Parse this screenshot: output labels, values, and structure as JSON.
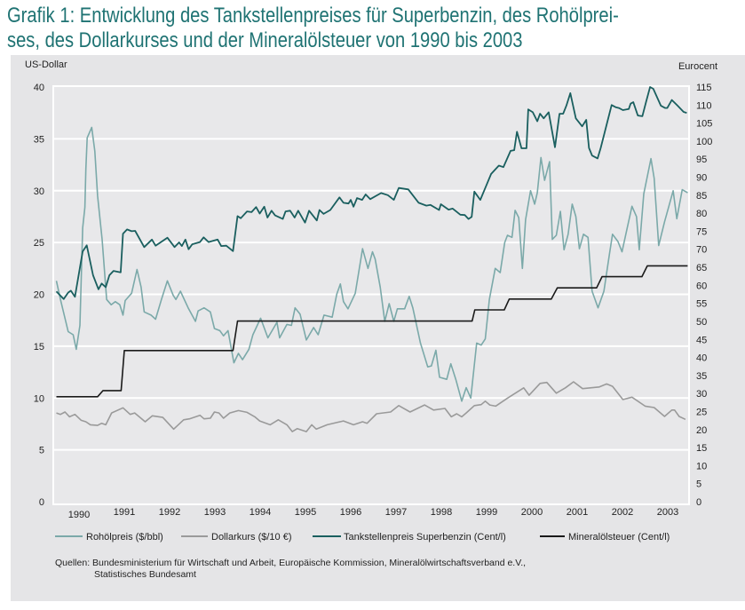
{
  "title": "Grafik 1: Entwicklung des Tankstellenpreises für Superbenzin, des Rohölpreises, des Dollarkurses und der Mineralölsteuer von 1990 bis 2003",
  "title_lines": [
    "Grafik 1: Entwicklung des Tankstellenpreises für Superbenzin, des Rohölprei-",
    "ses, des Dollarkurses und der Mineralölsteuer von 1990 bis 2003"
  ],
  "sources": [
    "Quellen: Bundesministerium für Wirtschaft und Arbeit, Europäische Kommission, Mineralölwirtschaftsverband e.V.,",
    "Statistisches Bundesamt"
  ],
  "chart_data": {
    "type": "line",
    "ylabel_left": "US-Dollar",
    "ylabel_right": "Eurocent",
    "ylim_left": [
      0,
      40
    ],
    "ylim_right": [
      0,
      115
    ],
    "yticks_left": [
      0,
      5,
      10,
      15,
      20,
      25,
      30,
      35,
      40
    ],
    "yticks_right": [
      0,
      5,
      10,
      15,
      20,
      25,
      30,
      35,
      40,
      45,
      50,
      55,
      60,
      65,
      70,
      75,
      80,
      85,
      90,
      95,
      100,
      105,
      110,
      115
    ],
    "xlim": [
      1990,
      2004
    ],
    "xtick_labels": [
      "1990",
      "1991",
      "1992",
      "1993",
      "1994",
      "1995",
      "1996",
      "1997",
      "1998",
      "1999",
      "2000",
      "2001",
      "2002",
      "2003"
    ],
    "grid": "horizontal",
    "legend_placement": "bottom",
    "series": [
      {
        "name": "Rohölpreis ($/bbl)",
        "axis": "left",
        "color": "#7ba9a9",
        "x": [
          1990.0,
          1990.09,
          1990.26,
          1990.37,
          1990.44,
          1990.52,
          1990.58,
          1990.63,
          1990.65,
          1990.68,
          1990.78,
          1990.85,
          1990.91,
          1991.01,
          1991.11,
          1991.21,
          1991.3,
          1991.4,
          1991.47,
          1991.52,
          1991.66,
          1991.78,
          1991.87,
          1991.94,
          1992.09,
          1992.19,
          1992.32,
          1992.45,
          1992.58,
          1992.64,
          1992.74,
          1992.91,
          1993.07,
          1993.13,
          1993.26,
          1993.4,
          1993.49,
          1993.61,
          1993.69,
          1993.79,
          1993.92,
          1994.02,
          1994.11,
          1994.25,
          1994.34,
          1994.51,
          1994.67,
          1994.87,
          1994.93,
          1995.09,
          1995.19,
          1995.27,
          1995.38,
          1995.52,
          1995.68,
          1995.78,
          1995.91,
          1996.09,
          1996.19,
          1996.27,
          1996.34,
          1996.44,
          1996.6,
          1996.76,
          1996.88,
          1996.98,
          1997.04,
          1997.15,
          1997.25,
          1997.35,
          1997.45,
          1997.53,
          1997.69,
          1997.79,
          1997.87,
          1998.04,
          1998.2,
          1998.28,
          1998.38,
          1998.46,
          1998.62,
          1998.71,
          1998.82,
          1998.95,
          1999.05,
          1999.15,
          1999.28,
          1999.38,
          1999.47,
          1999.56,
          1999.69,
          1999.8,
          1999.9,
          1999.96,
          2000.06,
          2000.13,
          2000.21,
          2000.29,
          2000.36,
          2000.47,
          2000.56,
          2000.62,
          2000.7,
          2000.78,
          2000.89,
          2000.95,
          2001.04,
          2001.13,
          2001.21,
          2001.3,
          2001.39,
          2001.47,
          2001.55,
          2001.64,
          2001.74,
          2001.83,
          2001.96,
          2002.09,
          2002.21,
          2002.28,
          2002.4,
          2002.49,
          2002.61,
          2002.71,
          2002.81,
          2002.87,
          2002.97,
          2003.13,
          2003.2,
          2003.3,
          2003.43,
          2003.62,
          2003.7,
          2003.82,
          2003.94
        ],
        "values": [
          21.3,
          19.5,
          16.4,
          16.1,
          14.7,
          17.0,
          26.4,
          28.4,
          32.1,
          35.1,
          36.1,
          33.8,
          29.5,
          25.3,
          19.5,
          19.0,
          19.3,
          19.0,
          18.0,
          19.4,
          20.1,
          22.4,
          20.7,
          18.3,
          18.0,
          17.6,
          19.5,
          21.3,
          19.9,
          19.5,
          20.3,
          18.7,
          17.4,
          18.4,
          18.7,
          18.3,
          16.7,
          16.5,
          16.0,
          16.5,
          13.4,
          14.3,
          13.7,
          14.7,
          16.1,
          17.7,
          15.8,
          17.3,
          15.8,
          17.1,
          17.0,
          18.7,
          18.1,
          15.6,
          16.8,
          16.1,
          18.0,
          17.8,
          20.0,
          21.0,
          19.3,
          18.6,
          20.1,
          24.4,
          22.5,
          24.1,
          23.4,
          20.7,
          17.4,
          19.1,
          17.4,
          18.6,
          18.6,
          19.8,
          18.7,
          15.3,
          13.0,
          13.1,
          14.6,
          12.0,
          11.8,
          13.3,
          11.8,
          9.7,
          11.0,
          10.0,
          15.3,
          15.1,
          15.7,
          19.5,
          22.5,
          22.1,
          25.0,
          25.7,
          25.5,
          28.1,
          27.4,
          22.5,
          27.2,
          30.0,
          28.7,
          29.8,
          33.2,
          31.0,
          32.8,
          25.3,
          25.7,
          28.0,
          24.3,
          25.8,
          28.7,
          27.5,
          24.4,
          25.8,
          25.5,
          20.3,
          18.7,
          20.3,
          23.8,
          25.8,
          25.1,
          24.1,
          26.5,
          28.5,
          27.5,
          24.3,
          29.7,
          33.1,
          31.2,
          24.7,
          27.0,
          30.0,
          27.3,
          30.1,
          29.8
        ]
      },
      {
        "name": "Dollarkurs ($/10 €)",
        "axis": "left",
        "color": "#9a9a9a",
        "x": [
          1990.0,
          1990.09,
          1990.19,
          1990.29,
          1990.41,
          1990.55,
          1990.65,
          1990.75,
          1990.91,
          1991.0,
          1991.09,
          1991.22,
          1991.47,
          1991.63,
          1991.73,
          1991.96,
          1992.12,
          1992.35,
          1992.59,
          1992.81,
          1992.94,
          1993.17,
          1993.26,
          1993.4,
          1993.49,
          1993.59,
          1993.69,
          1993.83,
          1994.02,
          1994.21,
          1994.38,
          1994.49,
          1994.72,
          1994.9,
          1995.09,
          1995.21,
          1995.32,
          1995.52,
          1995.64,
          1995.74,
          1995.98,
          1996.34,
          1996.56,
          1996.76,
          1996.86,
          1997.07,
          1997.38,
          1997.56,
          1997.81,
          1998.13,
          1998.33,
          1998.58,
          1998.72,
          1998.84,
          1998.95,
          1999.05,
          1999.23,
          1999.38,
          1999.47,
          1999.57,
          1999.7,
          1999.96,
          2000.32,
          2000.44,
          2000.68,
          2000.83,
          2001.04,
          2001.24,
          2001.42,
          2001.62,
          2001.99,
          2002.15,
          2002.28,
          2002.51,
          2002.71,
          2003.0,
          2003.2,
          2003.43,
          2003.59,
          2003.65,
          2003.75,
          2003.89
        ],
        "values": [
          8.56,
          8.42,
          8.65,
          8.19,
          8.42,
          7.85,
          7.71,
          7.42,
          7.36,
          7.56,
          7.42,
          8.56,
          9.05,
          8.42,
          8.56,
          7.71,
          8.28,
          8.13,
          7.0,
          7.9,
          7.99,
          8.33,
          7.99,
          8.05,
          8.65,
          8.56,
          8.05,
          8.56,
          8.79,
          8.62,
          8.19,
          7.79,
          7.42,
          7.9,
          7.42,
          6.76,
          7.05,
          6.76,
          7.42,
          7.0,
          7.42,
          7.79,
          7.42,
          7.71,
          7.56,
          8.48,
          8.65,
          9.27,
          8.65,
          9.33,
          8.84,
          8.99,
          8.19,
          8.48,
          8.19,
          8.56,
          9.27,
          9.36,
          9.7,
          9.33,
          9.22,
          9.99,
          10.98,
          10.27,
          11.41,
          11.5,
          10.47,
          10.98,
          11.56,
          10.9,
          11.07,
          11.36,
          11.13,
          9.85,
          10.08,
          9.22,
          9.08,
          8.22,
          8.84,
          8.84,
          8.22,
          7.94
        ]
      },
      {
        "name": "Tankstellenpreis Superbenzin (Cent/l)",
        "axis": "right",
        "color": "#1a5f5f",
        "x": [
          1990.0,
          1990.16,
          1990.26,
          1990.32,
          1990.41,
          1990.58,
          1990.67,
          1990.81,
          1990.93,
          1991.0,
          1991.09,
          1991.17,
          1991.26,
          1991.42,
          1991.47,
          1991.56,
          1991.66,
          1991.74,
          1991.94,
          1992.11,
          1992.19,
          1992.45,
          1992.61,
          1992.71,
          1992.77,
          1992.85,
          1992.92,
          1993.0,
          1993.17,
          1993.25,
          1993.36,
          1993.56,
          1993.64,
          1993.75,
          1993.9,
          1994.0,
          1994.07,
          1994.21,
          1994.31,
          1994.41,
          1994.49,
          1994.59,
          1994.66,
          1994.75,
          1994.83,
          1995.0,
          1995.06,
          1995.16,
          1995.26,
          1995.34,
          1995.49,
          1995.58,
          1995.75,
          1995.81,
          1995.9,
          1996.05,
          1996.25,
          1996.34,
          1996.45,
          1996.5,
          1996.56,
          1996.64,
          1996.75,
          1996.83,
          1996.93,
          1997.17,
          1997.32,
          1997.45,
          1997.56,
          1997.77,
          1998.0,
          1998.17,
          1998.26,
          1998.45,
          1998.49,
          1998.66,
          1998.75,
          1998.92,
          1999.02,
          1999.1,
          1999.17,
          1999.23,
          1999.36,
          1999.47,
          1999.6,
          1999.77,
          1999.87,
          2000.03,
          2000.11,
          2000.17,
          2000.27,
          2000.38,
          2000.42,
          2000.52,
          2000.62,
          2000.68,
          2000.76,
          2000.87,
          2001.01,
          2001.11,
          2001.19,
          2001.26,
          2001.35,
          2001.47,
          2001.61,
          2001.7,
          2001.76,
          2001.83,
          2001.95,
          2002.02,
          2002.26,
          2002.35,
          2002.42,
          2002.51,
          2002.64,
          2002.68,
          2002.74,
          2002.84,
          2002.94,
          2003.02,
          2003.11,
          2003.18,
          2003.35,
          2003.44,
          2003.49,
          2003.59,
          2003.72,
          2003.85,
          2003.92
        ],
        "values": [
          58.3,
          56.2,
          58.0,
          58.5,
          56.8,
          69.4,
          71.1,
          62.8,
          58.9,
          60.5,
          59.5,
          62.8,
          64.0,
          63.6,
          74.3,
          75.5,
          75.0,
          75.1,
          70.6,
          72.7,
          71.0,
          73.2,
          70.6,
          71.9,
          70.9,
          72.7,
          70.0,
          71.4,
          72.0,
          73.3,
          72.0,
          72.7,
          70.9,
          71.0,
          69.5,
          79.2,
          78.6,
          80.5,
          80.3,
          81.7,
          79.9,
          81.8,
          78.8,
          80.7,
          79.4,
          78.4,
          80.5,
          80.7,
          78.8,
          80.7,
          77.4,
          80.7,
          78.0,
          80.9,
          79.8,
          80.9,
          84.4,
          82.9,
          82.7,
          83.7,
          81.8,
          84.2,
          83.7,
          85.2,
          83.9,
          85.6,
          85.0,
          83.7,
          87.0,
          86.6,
          82.9,
          82.1,
          82.3,
          80.9,
          82.5,
          81.0,
          81.3,
          79.6,
          79.5,
          78.4,
          79.0,
          86.0,
          83.7,
          87.0,
          90.9,
          93.2,
          92.8,
          97.3,
          97.5,
          102.6,
          98.0,
          98.0,
          108.8,
          108.0,
          105.5,
          107.6,
          106.3,
          108.0,
          98.3,
          107.6,
          107.6,
          109.8,
          113.3,
          106.3,
          104.1,
          105.9,
          98.1,
          96.0,
          95.2,
          98.1,
          110.0,
          109.4,
          109.2,
          108.6,
          108.9,
          110.4,
          110.8,
          107.1,
          106.9,
          110.8,
          115.0,
          114.5,
          109.8,
          109.2,
          109.2,
          111.4,
          109.8,
          108.1,
          107.8
        ]
      },
      {
        "name": "Mineralölsteuer (Cent/l)",
        "axis": "right",
        "color": "#1a1a1a",
        "x": [
          1990.0,
          1990.91,
          1991.03,
          1991.43,
          1991.5,
          1993.9,
          1994.0,
          1999.18,
          1999.24,
          1999.89,
          2000.0,
          2000.93,
          2001.06,
          2001.93,
          2002.05,
          2002.93,
          2003.05,
          2003.94
        ],
        "values": [
          29.1,
          29.1,
          30.8,
          30.8,
          41.9,
          41.9,
          50.1,
          50.1,
          53.2,
          53.2,
          56.2,
          56.2,
          59.3,
          59.3,
          62.4,
          62.4,
          65.4,
          65.4
        ]
      }
    ]
  }
}
